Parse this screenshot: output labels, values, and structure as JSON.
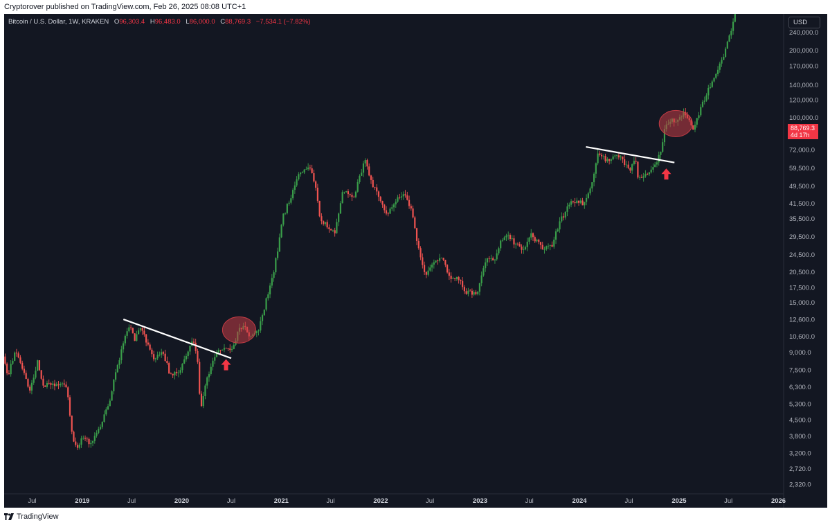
{
  "header": {
    "published_by": "Cryptorover published on TradingView.com, Feb 26, 2025 08:08 UTC+1"
  },
  "legend": {
    "symbol": "Bitcoin / U.S. Dollar, 1W, KRAKEN",
    "open_label": "O",
    "open_value": "96,303.4",
    "high_label": "H",
    "high_value": "96,483.0",
    "low_label": "L",
    "low_value": "86,000.0",
    "close_label": "C",
    "close_value": "88,769.3",
    "change": "−7,534.1 (−7.82%)"
  },
  "currency": "USD",
  "last_price": {
    "value": "88,769.3",
    "countdown": "4d 17h"
  },
  "footer": {
    "brand": "TradingView"
  },
  "colors": {
    "background": "#131722",
    "up": "#26a69a",
    "up_candle": "#3a9e4a",
    "down": "#f23645",
    "down_candle": "#ef5350",
    "axis_text": "#b2b5be",
    "trendline": "#ffffff",
    "highlight": "#c43c45",
    "arrow": "#f23645"
  },
  "chart_data": {
    "type": "candlestick",
    "symbol": "Bitcoin / U.S. Dollar",
    "interval": "1W",
    "exchange": "KRAKEN",
    "y_scale": "log",
    "ylim": [
      2100,
      290000
    ],
    "xlim": [
      "2018-03-20",
      "2026-01-20"
    ],
    "y_ticks": [
      {
        "value": 240000,
        "label": "240,000.0"
      },
      {
        "value": 200000,
        "label": "200,000.0"
      },
      {
        "value": 170000,
        "label": "170,000.0"
      },
      {
        "value": 140000,
        "label": "140,000.0"
      },
      {
        "value": 120000,
        "label": "120,000.0"
      },
      {
        "value": 100000,
        "label": "100,000.0"
      },
      {
        "value": 72000,
        "label": "72,000.0"
      },
      {
        "value": 59500,
        "label": "59,500.0"
      },
      {
        "value": 49500,
        "label": "49,500.0"
      },
      {
        "value": 41500,
        "label": "41,500.0"
      },
      {
        "value": 35500,
        "label": "35,500.0"
      },
      {
        "value": 29500,
        "label": "29,500.0"
      },
      {
        "value": 24500,
        "label": "24,500.0"
      },
      {
        "value": 20500,
        "label": "20,500.0"
      },
      {
        "value": 17500,
        "label": "17,500.0"
      },
      {
        "value": 15000,
        "label": "15,000.0"
      },
      {
        "value": 12600,
        "label": "12,600.0"
      },
      {
        "value": 10600,
        "label": "10,600.0"
      },
      {
        "value": 9000,
        "label": "9,000.0"
      },
      {
        "value": 7500,
        "label": "7,500.0"
      },
      {
        "value": 6300,
        "label": "6,300.0"
      },
      {
        "value": 5300,
        "label": "5,300.0"
      },
      {
        "value": 4500,
        "label": "4,500.0"
      },
      {
        "value": 3800,
        "label": "3,800.0"
      },
      {
        "value": 3200,
        "label": "3,200.0"
      },
      {
        "value": 2720,
        "label": "2,720.0"
      },
      {
        "value": 2320,
        "label": "2,320.0"
      }
    ],
    "x_ticks": [
      {
        "date": "2018-07-01",
        "label": "Jul",
        "bold": false
      },
      {
        "date": "2019-01-01",
        "label": "2019",
        "bold": true
      },
      {
        "date": "2019-07-01",
        "label": "Jul",
        "bold": false
      },
      {
        "date": "2020-01-01",
        "label": "2020",
        "bold": true
      },
      {
        "date": "2020-07-01",
        "label": "Jul",
        "bold": false
      },
      {
        "date": "2021-01-01",
        "label": "2021",
        "bold": true
      },
      {
        "date": "2021-07-01",
        "label": "Jul",
        "bold": false
      },
      {
        "date": "2022-01-01",
        "label": "2022",
        "bold": true
      },
      {
        "date": "2022-07-01",
        "label": "Jul",
        "bold": false
      },
      {
        "date": "2023-01-01",
        "label": "2023",
        "bold": true
      },
      {
        "date": "2023-07-01",
        "label": "Jul",
        "bold": false
      },
      {
        "date": "2024-01-01",
        "label": "2024",
        "bold": true
      },
      {
        "date": "2024-07-01",
        "label": "Jul",
        "bold": false
      },
      {
        "date": "2025-01-01",
        "label": "2025",
        "bold": true
      },
      {
        "date": "2025-07-01",
        "label": "Jul",
        "bold": false
      },
      {
        "date": "2026-01-01",
        "label": "2026",
        "bold": true
      }
    ],
    "price_path": [
      [
        "2018-03-20",
        8600
      ],
      [
        "2018-04-05",
        7000
      ],
      [
        "2018-05-05",
        9300
      ],
      [
        "2018-06-01",
        7500
      ],
      [
        "2018-06-25",
        6100
      ],
      [
        "2018-07-25",
        8200
      ],
      [
        "2018-08-15",
        6300
      ],
      [
        "2018-09-10",
        6500
      ],
      [
        "2018-10-15",
        6400
      ],
      [
        "2018-11-10",
        6300
      ],
      [
        "2018-11-25",
        4000
      ],
      [
        "2018-12-15",
        3300
      ],
      [
        "2019-01-05",
        3800
      ],
      [
        "2019-02-01",
        3500
      ],
      [
        "2019-03-01",
        3900
      ],
      [
        "2019-04-10",
        5200
      ],
      [
        "2019-05-15",
        8000
      ],
      [
        "2019-06-26",
        12000
      ],
      [
        "2019-07-15",
        10300
      ],
      [
        "2019-08-10",
        11500
      ],
      [
        "2019-09-25",
        8200
      ],
      [
        "2019-10-25",
        9300
      ],
      [
        "2019-11-20",
        7300
      ],
      [
        "2019-12-20",
        7200
      ],
      [
        "2020-01-20",
        8600
      ],
      [
        "2020-02-12",
        10200
      ],
      [
        "2020-03-01",
        8700
      ],
      [
        "2020-03-13",
        5000
      ],
      [
        "2020-04-05",
        6800
      ],
      [
        "2020-05-10",
        9000
      ],
      [
        "2020-06-10",
        9500
      ],
      [
        "2020-07-10",
        9200
      ],
      [
        "2020-07-28",
        11200
      ],
      [
        "2020-08-25",
        11600
      ],
      [
        "2020-09-15",
        10400
      ],
      [
        "2020-10-15",
        11600
      ],
      [
        "2020-11-10",
        15300
      ],
      [
        "2020-12-01",
        19000
      ],
      [
        "2020-12-25",
        26500
      ],
      [
        "2021-01-10",
        36000
      ],
      [
        "2021-02-10",
        45000
      ],
      [
        "2021-03-10",
        56000
      ],
      [
        "2021-04-14",
        61000
      ],
      [
        "2021-05-12",
        49000
      ],
      [
        "2021-05-25",
        36000
      ],
      [
        "2021-06-20",
        33000
      ],
      [
        "2021-07-20",
        30500
      ],
      [
        "2021-08-20",
        48000
      ],
      [
        "2021-09-25",
        43000
      ],
      [
        "2021-11-08",
        66000
      ],
      [
        "2021-12-05",
        50000
      ],
      [
        "2022-01-05",
        43000
      ],
      [
        "2022-01-25",
        37000
      ],
      [
        "2022-03-01",
        43000
      ],
      [
        "2022-03-30",
        46000
      ],
      [
        "2022-05-01",
        38000
      ],
      [
        "2022-05-15",
        29500
      ],
      [
        "2022-06-18",
        19500
      ],
      [
        "2022-07-20",
        23000
      ],
      [
        "2022-08-15",
        24000
      ],
      [
        "2022-09-15",
        19500
      ],
      [
        "2022-10-15",
        19500
      ],
      [
        "2022-11-10",
        16500
      ],
      [
        "2022-12-25",
        16700
      ],
      [
        "2023-01-25",
        23000
      ],
      [
        "2023-03-01",
        23500
      ],
      [
        "2023-03-20",
        27500
      ],
      [
        "2023-04-15",
        30000
      ],
      [
        "2023-05-15",
        27000
      ],
      [
        "2023-06-15",
        26000
      ],
      [
        "2023-07-10",
        30500
      ],
      [
        "2023-08-20",
        26000
      ],
      [
        "2023-09-25",
        27000
      ],
      [
        "2023-10-25",
        34500
      ],
      [
        "2023-12-05",
        42000
      ],
      [
        "2024-01-20",
        41500
      ],
      [
        "2024-02-20",
        52000
      ],
      [
        "2024-03-13",
        70000
      ],
      [
        "2024-04-15",
        64000
      ],
      [
        "2024-05-20",
        69000
      ],
      [
        "2024-06-20",
        62000
      ],
      [
        "2024-07-10",
        57000
      ],
      [
        "2024-07-28",
        68000
      ],
      [
        "2024-08-05",
        54000
      ],
      [
        "2024-09-08",
        55000
      ],
      [
        "2024-10-10",
        62000
      ],
      [
        "2024-10-28",
        70000
      ],
      [
        "2024-11-12",
        88000
      ],
      [
        "2024-12-05",
        98000
      ],
      [
        "2024-12-25",
        95000
      ],
      [
        "2025-01-22",
        104000
      ],
      [
        "2025-02-15",
        96000
      ],
      [
        "2025-02-24",
        88769
      ],
      [
        "2025-03-25",
        110000
      ],
      [
        "2025-04-20",
        132000
      ],
      [
        "2025-05-20",
        158000
      ],
      [
        "2025-06-20",
        195000
      ],
      [
        "2025-07-10",
        235000
      ],
      [
        "2025-07-28",
        290000
      ]
    ],
    "annotations": {
      "trendlines": [
        {
          "from": [
            "2019-06-01",
            12600
          ],
          "to": [
            "2020-07-01",
            8450
          ]
        },
        {
          "from": [
            "2024-01-25",
            74000
          ],
          "to": [
            "2024-12-15",
            63000
          ]
        }
      ],
      "highlight_circles": [
        {
          "center": [
            "2020-07-30",
            11300
          ]
        },
        {
          "center": [
            "2024-12-20",
            94000
          ]
        }
      ],
      "up_arrows": [
        {
          "at": [
            "2020-06-12",
            7900
          ]
        },
        {
          "at": [
            "2024-11-15",
            56000
          ]
        }
      ]
    }
  }
}
